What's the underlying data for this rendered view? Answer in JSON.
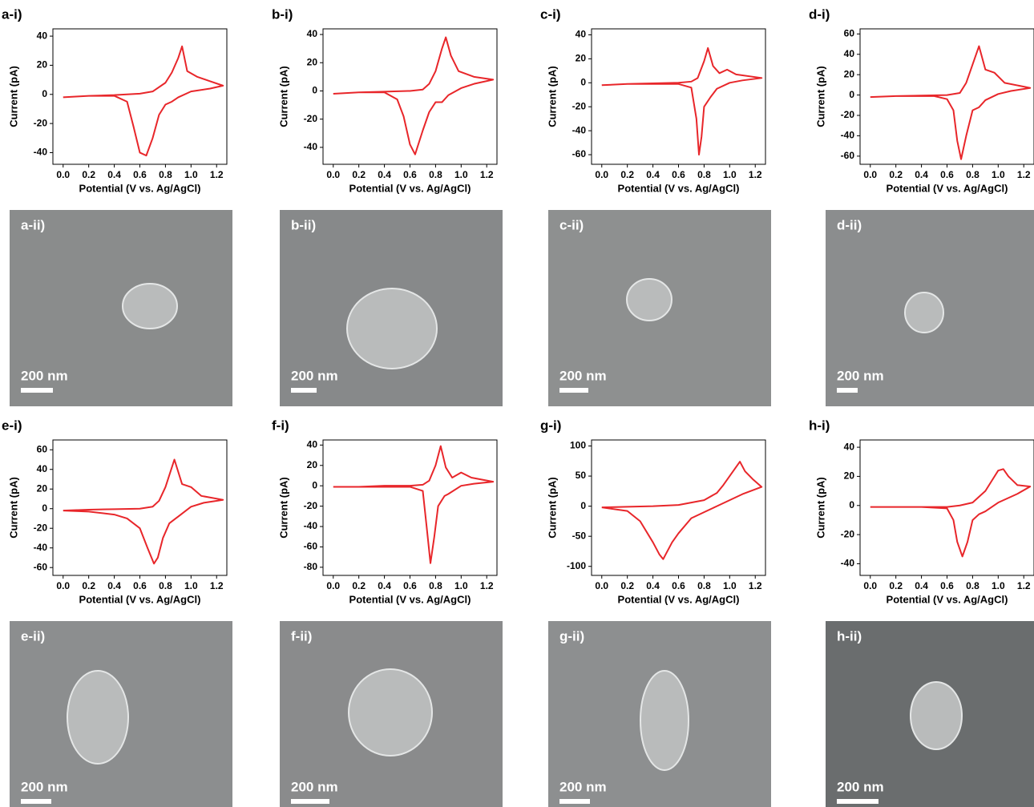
{
  "chart_data": [
    {
      "type": "line",
      "label": "a-i)",
      "y_label": "Current (pA)",
      "x_label": "Potential (V vs. Ag/AgCl)",
      "xlim": [
        -0.08,
        1.28
      ],
      "xticks": [
        {
          "value": 0,
          "label": "0.0"
        },
        0.2,
        0.4,
        0.6,
        0.8,
        {
          "value": 1,
          "label": "1.0"
        },
        1.2
      ],
      "ylim": [
        -48,
        45
      ],
      "yticks": [
        -40,
        -20,
        0,
        20,
        40
      ],
      "series": [
        {
          "color": "#e8262a",
          "x": [
            0,
            0.2,
            0.4,
            0.5,
            0.6,
            0.7,
            0.8,
            0.85,
            0.9,
            0.93,
            0.97,
            1.05,
            1.15,
            1.25,
            1.15,
            1.0,
            0.9,
            0.85,
            0.8,
            0.75,
            0.7,
            0.65,
            0.6,
            0.55,
            0.5,
            0.4,
            0.2,
            0
          ],
          "values": [
            -2,
            -1,
            -0.5,
            0,
            0.5,
            2,
            8,
            15,
            25,
            33,
            16,
            12,
            9,
            6,
            4,
            2,
            -2,
            -5,
            -7,
            -14,
            -30,
            -42,
            -40,
            -22,
            -5,
            -1,
            -1,
            -2
          ]
        }
      ]
    },
    {
      "type": "line",
      "label": "b-i)",
      "y_label": "Current (pA)",
      "x_label": "Potential (V vs. Ag/AgCl)",
      "xlim": [
        -0.08,
        1.28
      ],
      "xticks": [
        {
          "value": 0,
          "label": "0.0"
        },
        0.2,
        0.4,
        0.6,
        0.8,
        {
          "value": 1,
          "label": "1.0"
        },
        1.2
      ],
      "ylim": [
        -52,
        44
      ],
      "yticks": [
        -40,
        -20,
        0,
        20,
        40
      ],
      "series": [
        {
          "color": "#e8262a",
          "x": [
            0,
            0.2,
            0.4,
            0.6,
            0.7,
            0.75,
            0.8,
            0.85,
            0.88,
            0.92,
            0.98,
            1.1,
            1.25,
            1.1,
            1.0,
            0.9,
            0.85,
            0.8,
            0.75,
            0.7,
            0.64,
            0.6,
            0.55,
            0.5,
            0.4,
            0.2,
            0
          ],
          "values": [
            -2,
            -1,
            -0.5,
            0,
            1,
            5,
            14,
            30,
            38,
            25,
            14,
            10,
            8,
            5,
            2,
            -3,
            -8,
            -8,
            -15,
            -28,
            -45,
            -38,
            -18,
            -6,
            -1,
            -1,
            -2
          ]
        }
      ]
    },
    {
      "type": "line",
      "label": "c-i)",
      "y_label": "Current (pA)",
      "x_label": "Potential (V vs. Ag/AgCl)",
      "xlim": [
        -0.08,
        1.28
      ],
      "xticks": [
        {
          "value": 0,
          "label": "0.0"
        },
        0.2,
        0.4,
        0.6,
        0.8,
        {
          "value": 1,
          "label": "1.0"
        },
        1.2
      ],
      "ylim": [
        -68,
        45
      ],
      "yticks": [
        -60,
        -40,
        -20,
        0,
        20,
        40
      ],
      "series": [
        {
          "color": "#e8262a",
          "x": [
            0,
            0.2,
            0.4,
            0.6,
            0.7,
            0.75,
            0.8,
            0.83,
            0.87,
            0.92,
            0.98,
            1.05,
            1.25,
            1.1,
            1.0,
            0.9,
            0.85,
            0.8,
            0.78,
            0.76,
            0.74,
            0.7,
            0.6,
            0.4,
            0.2,
            0
          ],
          "values": [
            -2,
            -1,
            -0.5,
            0,
            1,
            4,
            18,
            29,
            14,
            8,
            11,
            7,
            4,
            2,
            0,
            -5,
            -12,
            -20,
            -45,
            -60,
            -30,
            -4,
            -1,
            -1,
            -1,
            -2
          ]
        }
      ]
    },
    {
      "type": "line",
      "label": "d-i)",
      "y_label": "Current (pA)",
      "x_label": "Potential (V vs. Ag/AgCl)",
      "xlim": [
        -0.08,
        1.28
      ],
      "xticks": [
        {
          "value": 0,
          "label": "0.0"
        },
        0.2,
        0.4,
        0.6,
        0.8,
        {
          "value": 1,
          "label": "1.0"
        },
        1.2
      ],
      "ylim": [
        -68,
        65
      ],
      "yticks": [
        -60,
        -40,
        -20,
        0,
        20,
        40,
        60
      ],
      "series": [
        {
          "color": "#e8262a",
          "x": [
            0,
            0.2,
            0.4,
            0.6,
            0.7,
            0.75,
            0.8,
            0.85,
            0.9,
            0.97,
            1.05,
            1.25,
            1.1,
            1.0,
            0.9,
            0.85,
            0.8,
            0.75,
            0.71,
            0.68,
            0.65,
            0.6,
            0.5,
            0.4,
            0.2,
            0
          ],
          "values": [
            -2,
            -1,
            -0.5,
            0,
            2,
            12,
            30,
            48,
            25,
            22,
            12,
            7,
            4,
            1,
            -5,
            -12,
            -15,
            -40,
            -63,
            -45,
            -15,
            -4,
            -1,
            -1,
            -1,
            -2
          ]
        }
      ]
    },
    {
      "type": "line",
      "label": "e-i)",
      "y_label": "Current (pA)",
      "x_label": "Potential (V vs. Ag/AgCl)",
      "xlim": [
        -0.08,
        1.28
      ],
      "xticks": [
        {
          "value": 0,
          "label": "0.0"
        },
        0.2,
        0.4,
        0.6,
        0.8,
        {
          "value": 1,
          "label": "1.0"
        },
        1.2
      ],
      "ylim": [
        -68,
        70
      ],
      "yticks": [
        -60,
        -40,
        -20,
        0,
        20,
        40,
        60
      ],
      "series": [
        {
          "color": "#e8262a",
          "x": [
            0,
            0.2,
            0.4,
            0.6,
            0.7,
            0.75,
            0.8,
            0.87,
            0.93,
            1.0,
            1.08,
            1.25,
            1.1,
            1.0,
            0.9,
            0.88,
            0.83,
            0.78,
            0.74,
            0.71,
            0.66,
            0.6,
            0.5,
            0.4,
            0.2,
            0
          ],
          "values": [
            -2,
            -1,
            -0.5,
            0,
            2,
            8,
            22,
            50,
            25,
            22,
            13,
            9,
            6,
            2,
            -8,
            -10,
            -15,
            -30,
            -50,
            -56,
            -40,
            -20,
            -10,
            -6,
            -3,
            -2
          ]
        }
      ]
    },
    {
      "type": "line",
      "label": "f-i)",
      "y_label": "Current (pA)",
      "x_label": "Potential (V vs. Ag/AgCl)",
      "xlim": [
        -0.08,
        1.28
      ],
      "xticks": [
        {
          "value": 0,
          "label": "0.0"
        },
        0.2,
        0.4,
        0.6,
        0.8,
        {
          "value": 1,
          "label": "1.0"
        },
        1.2
      ],
      "ylim": [
        -88,
        45
      ],
      "yticks": [
        -80,
        -60,
        -40,
        -20,
        0,
        20,
        40
      ],
      "series": [
        {
          "color": "#e8262a",
          "x": [
            0,
            0.2,
            0.4,
            0.6,
            0.7,
            0.75,
            0.8,
            0.84,
            0.88,
            0.93,
            1.0,
            1.08,
            1.25,
            1.1,
            1.0,
            0.9,
            0.87,
            0.82,
            0.79,
            0.76,
            0.73,
            0.7,
            0.6,
            0.4,
            0.2,
            0
          ],
          "values": [
            -1,
            -1,
            0,
            0,
            1,
            5,
            20,
            39,
            18,
            8,
            13,
            8,
            4,
            2,
            0,
            -8,
            -10,
            -20,
            -50,
            -76,
            -40,
            -5,
            -1,
            -1,
            -1,
            -1
          ]
        }
      ]
    },
    {
      "type": "line",
      "label": "g-i)",
      "y_label": "Current (pA)",
      "x_label": "Potential (V vs. Ag/AgCl)",
      "xlim": [
        -0.08,
        1.28
      ],
      "xticks": [
        {
          "value": 0,
          "label": "0.0"
        },
        0.2,
        0.4,
        0.6,
        0.8,
        {
          "value": 1,
          "label": "1.0"
        },
        1.2
      ],
      "ylim": [
        -115,
        110
      ],
      "yticks": [
        -100,
        -50,
        0,
        50,
        100
      ],
      "series": [
        {
          "color": "#e8262a",
          "x": [
            0,
            0.2,
            0.4,
            0.6,
            0.8,
            0.9,
            0.95,
            1.0,
            1.05,
            1.08,
            1.12,
            1.18,
            1.25,
            1.2,
            1.1,
            1.0,
            0.9,
            0.8,
            0.7,
            0.6,
            0.55,
            0.5,
            0.48,
            0.45,
            0.4,
            0.3,
            0.2,
            0
          ],
          "values": [
            -2,
            -1,
            0,
            2,
            10,
            22,
            35,
            50,
            65,
            74,
            58,
            45,
            32,
            28,
            20,
            10,
            0,
            -10,
            -20,
            -45,
            -60,
            -80,
            -88,
            -80,
            -60,
            -25,
            -8,
            -2
          ]
        }
      ]
    },
    {
      "type": "line",
      "label": "h-i)",
      "y_label": "Current (pA)",
      "x_label": "Potential (V vs. Ag/AgCl)",
      "xlim": [
        -0.08,
        1.28
      ],
      "xticks": [
        {
          "value": 0,
          "label": "0.0"
        },
        0.2,
        0.4,
        0.6,
        0.8,
        {
          "value": 1,
          "label": "1.0"
        },
        1.2
      ],
      "ylim": [
        -48,
        45
      ],
      "yticks": [
        -40,
        -20,
        0,
        20,
        40
      ],
      "series": [
        {
          "color": "#e8262a",
          "x": [
            0,
            0.2,
            0.4,
            0.6,
            0.7,
            0.8,
            0.9,
            0.95,
            1.0,
            1.04,
            1.08,
            1.15,
            1.25,
            1.15,
            1.0,
            0.9,
            0.85,
            0.8,
            0.76,
            0.72,
            0.68,
            0.65,
            0.6,
            0.4,
            0.2,
            0
          ],
          "values": [
            -1,
            -1,
            -1,
            -1,
            0,
            2,
            10,
            17,
            24,
            25,
            20,
            14,
            13,
            8,
            2,
            -4,
            -6,
            -10,
            -25,
            -35,
            -25,
            -10,
            -2,
            -1,
            -1,
            -1
          ]
        }
      ]
    }
  ],
  "micrographs": [
    {
      "label": "a-ii)",
      "scale_bar": "200 nm"
    },
    {
      "label": "b-ii)",
      "scale_bar": "200 nm"
    },
    {
      "label": "c-ii)",
      "scale_bar": "200 nm"
    },
    {
      "label": "d-ii)",
      "scale_bar": "200 nm"
    },
    {
      "label": "e-ii)",
      "scale_bar": "200 nm"
    },
    {
      "label": "f-ii)",
      "scale_bar": "200 nm"
    },
    {
      "label": "g-ii)",
      "scale_bar": "200 nm"
    },
    {
      "label": "h-ii)",
      "scale_bar": "200 nm"
    }
  ]
}
